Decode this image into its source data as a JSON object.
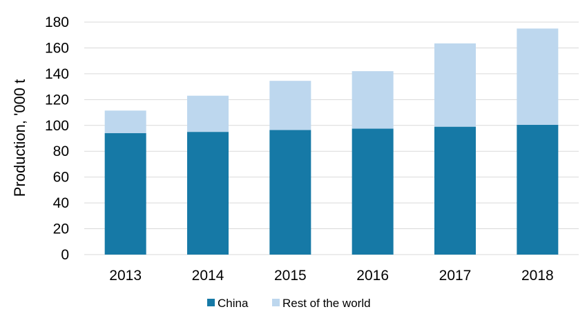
{
  "chart_data": {
    "type": "bar",
    "stacked": true,
    "title": "",
    "xlabel": "",
    "ylabel": "Production, '000 t",
    "categories": [
      "2013",
      "2014",
      "2015",
      "2016",
      "2017",
      "2018"
    ],
    "series": [
      {
        "name": "China",
        "values": [
          94,
          95,
          96.5,
          97.5,
          99,
          100.5
        ],
        "color": "#1679a6"
      },
      {
        "name": "Rest of the world",
        "values": [
          17.5,
          28,
          38,
          44.5,
          64.5,
          74.5
        ],
        "color": "#bdd7ee"
      }
    ],
    "ylim": [
      0,
      180
    ],
    "yticks": [
      "0",
      "20",
      "40",
      "60",
      "80",
      "100",
      "120",
      "140",
      "160",
      "180"
    ],
    "grid": true,
    "legend_position": "bottom"
  }
}
